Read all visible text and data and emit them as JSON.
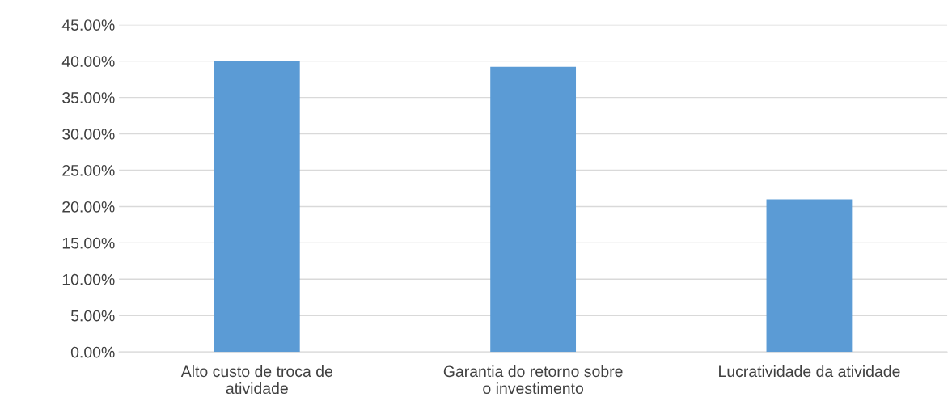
{
  "chart_data": {
    "type": "bar",
    "categories": [
      "Alto custo de troca de\natividade",
      "Garantia do retorno sobre\no investimento",
      "Lucratividade da atividade"
    ],
    "values": [
      40,
      39.2,
      21
    ],
    "color": "#5b9bd5",
    "ylim": [
      0,
      45
    ],
    "yticks": [
      {
        "value": 0,
        "label": "0.00%"
      },
      {
        "value": 5,
        "label": "5.00%"
      },
      {
        "value": 10,
        "label": "10.00%"
      },
      {
        "value": 15,
        "label": "15.00%"
      },
      {
        "value": 20,
        "label": "20.00%"
      },
      {
        "value": 25,
        "label": "25.00%"
      },
      {
        "value": 30,
        "label": "30.00%"
      },
      {
        "value": 35,
        "label": "35.00%"
      },
      {
        "value": 40,
        "label": "40.00%"
      },
      {
        "value": 45,
        "label": "45.00%"
      }
    ],
    "grid": "y"
  }
}
